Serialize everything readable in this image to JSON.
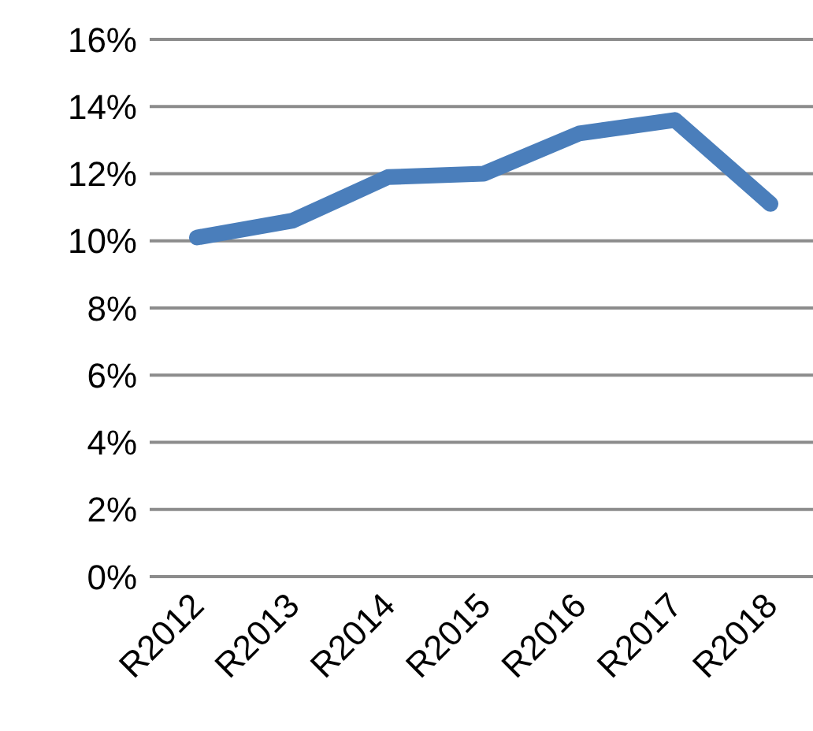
{
  "chart_data": {
    "type": "line",
    "categories": [
      "R2012",
      "R2013",
      "R2014",
      "R2015",
      "R2016",
      "R2017",
      "R2018"
    ],
    "series": [
      {
        "color": "#4a7ebb",
        "values": [
          10.1,
          10.6,
          11.9,
          12.0,
          13.2,
          13.6,
          11.1
        ]
      }
    ],
    "ylim": [
      0,
      16
    ],
    "yticks": [
      {
        "value": 0,
        "label": "0%"
      },
      {
        "value": 2,
        "label": "2%"
      },
      {
        "value": 4,
        "label": "4%"
      },
      {
        "value": 6,
        "label": "6%"
      },
      {
        "value": 8,
        "label": "8%"
      },
      {
        "value": 10,
        "label": "10%"
      },
      {
        "value": 12,
        "label": "12%"
      },
      {
        "value": 14,
        "label": "14%"
      },
      {
        "value": 16,
        "label": "16%"
      }
    ],
    "grid": "y",
    "marker": "none",
    "line_style": "solid",
    "legend": false
  }
}
